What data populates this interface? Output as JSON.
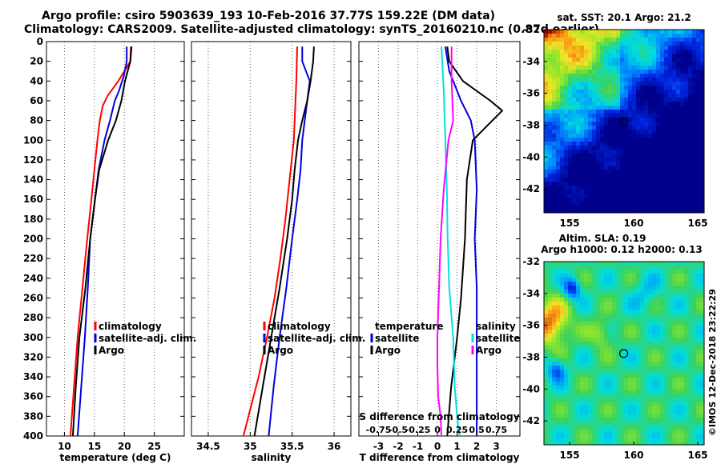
{
  "header": {
    "line1": "Argo profile: csiro 5903639_193 10-Feb-2016 37.77S 159.22E (DM data)",
    "line2": "Climatology: CARS2009. Satellite-adjusted climatology: synTS_20160210.nc (0.87d earlier)"
  },
  "watermark": "©IMOS 12-Dec-2018 23:22:29",
  "colors": {
    "climatology": "#ff0000",
    "satellite": "#0000dd",
    "argo": "#000000",
    "s_satellite": "#00e0e0",
    "s_argo": "#ff00ff",
    "grid": "#666666"
  },
  "chart_data": [
    {
      "id": "temperature",
      "type": "line",
      "xlabel": "temperature (deg C)",
      "ylabel": "",
      "xlim": [
        7,
        30
      ],
      "ylim": [
        400,
        0
      ],
      "xticks": [
        10,
        15,
        20,
        25
      ],
      "yticks": [
        0,
        20,
        40,
        60,
        80,
        100,
        120,
        140,
        160,
        180,
        200,
        220,
        240,
        260,
        280,
        300,
        320,
        340,
        360,
        380,
        400
      ],
      "legend": [
        "climatology",
        "satellite-adj. clim.",
        "Argo"
      ],
      "series": [
        {
          "name": "climatology",
          "depth": [
            5,
            20,
            40,
            55,
            65,
            80,
            100,
            130,
            160,
            200,
            250,
            300,
            350,
            400
          ],
          "values": [
            21.1,
            21.0,
            19.0,
            17.2,
            16.4,
            15.9,
            15.5,
            15.0,
            14.5,
            13.8,
            13.0,
            12.2,
            11.6,
            11.0
          ]
        },
        {
          "name": "satellite-adj. clim.",
          "depth": [
            5,
            20,
            35,
            50,
            60,
            80,
            100,
            130,
            160,
            200,
            250,
            300,
            350,
            400
          ],
          "values": [
            20.4,
            20.4,
            19.9,
            19.1,
            18.4,
            17.6,
            16.7,
            15.7,
            15.1,
            14.3,
            13.9,
            13.4,
            12.8,
            12.2
          ]
        },
        {
          "name": "Argo",
          "depth": [
            5,
            20,
            40,
            60,
            80,
            100,
            130,
            160,
            200,
            250,
            300,
            350,
            400
          ],
          "values": [
            21.2,
            21.0,
            20.1,
            19.5,
            18.6,
            17.3,
            15.8,
            15.1,
            14.3,
            13.5,
            12.5,
            11.9,
            11.4
          ]
        }
      ]
    },
    {
      "id": "salinity",
      "type": "line",
      "xlabel": "salinity",
      "ylabel": "",
      "xlim": [
        34.3,
        36.2
      ],
      "ylim": [
        400,
        0
      ],
      "xticks": [
        34.5,
        35,
        35.5,
        36
      ],
      "yticks": [
        0,
        20,
        40,
        60,
        80,
        100,
        120,
        140,
        160,
        180,
        200,
        220,
        240,
        260,
        280,
        300,
        320,
        340,
        360,
        380,
        400
      ],
      "legend": [
        "climatology",
        "satellite-adj. clim.",
        "Argo"
      ],
      "series": [
        {
          "name": "climatology",
          "depth": [
            5,
            40,
            80,
            100,
            140,
            180,
            220,
            260,
            300,
            340,
            380,
            400
          ],
          "values": [
            35.56,
            35.55,
            35.53,
            35.52,
            35.47,
            35.42,
            35.36,
            35.29,
            35.2,
            35.1,
            34.98,
            34.92
          ]
        },
        {
          "name": "satellite-adj. clim.",
          "depth": [
            5,
            20,
            40,
            60,
            80,
            100,
            130,
            160,
            200,
            250,
            300,
            350,
            400
          ],
          "values": [
            35.62,
            35.62,
            35.71,
            35.68,
            35.65,
            35.62,
            35.6,
            35.56,
            35.5,
            35.43,
            35.35,
            35.28,
            35.22
          ]
        },
        {
          "name": "Argo",
          "depth": [
            5,
            20,
            40,
            60,
            80,
            100,
            130,
            160,
            200,
            250,
            300,
            350,
            400
          ],
          "values": [
            35.76,
            35.75,
            35.72,
            35.68,
            35.62,
            35.57,
            35.53,
            35.5,
            35.44,
            35.35,
            35.25,
            35.15,
            35.05
          ]
        }
      ]
    },
    {
      "id": "difference",
      "type": "line",
      "xlabel": "T difference from climatology",
      "xlabel_top": "S difference from climatology",
      "ylabel": "",
      "xlim": [
        -4,
        4.2
      ],
      "ylim": [
        400,
        0
      ],
      "xticks": [
        -3,
        -2,
        -1,
        0,
        1,
        2,
        3
      ],
      "xtick_labels": [
        "-3",
        "-2",
        "-1",
        "0",
        "1",
        "2",
        "3"
      ],
      "s_xticks": [
        -0.75,
        -0.5,
        -0.25,
        0,
        0.25,
        0.5,
        0.75
      ],
      "s_xtick_labels": [
        "-0.75",
        "-0.5",
        "-0.25",
        "0",
        "0.25",
        "0.5",
        "0.75"
      ],
      "yticks": [
        0,
        20,
        40,
        60,
        80,
        100,
        120,
        140,
        160,
        180,
        200,
        220,
        240,
        260,
        280,
        300,
        320,
        340,
        360,
        380,
        400
      ],
      "legend": {
        "temperature_heading": "temperature",
        "salinity_heading": "salinity",
        "temperature": [
          "satellite",
          "Argo"
        ],
        "salinity": [
          "satellite",
          "Argo"
        ]
      },
      "series": [
        {
          "name": "temperature satellite",
          "depth": [
            5,
            30,
            50,
            60,
            80,
            100,
            150,
            200,
            250,
            300,
            350,
            400
          ],
          "values": [
            0.4,
            0.6,
            1.0,
            1.2,
            1.7,
            1.9,
            2.0,
            1.9,
            2.0,
            2.0,
            2.0,
            2.0
          ]
        },
        {
          "name": "temperature Argo",
          "depth": [
            5,
            20,
            40,
            60,
            70,
            80,
            100,
            140,
            200,
            260,
            300,
            350,
            400
          ],
          "values": [
            0.5,
            0.6,
            1.3,
            2.7,
            3.3,
            2.8,
            1.8,
            1.5,
            1.4,
            1.2,
            1.0,
            0.7,
            0.5
          ]
        },
        {
          "name": "salinity satellite",
          "depth": [
            5,
            50,
            100,
            150,
            200,
            250,
            300,
            350,
            380,
            400
          ],
          "values": [
            0.05,
            0.08,
            0.1,
            0.12,
            0.13,
            0.15,
            0.2,
            0.22,
            0.25,
            0.28
          ]
        },
        {
          "name": "salinity Argo",
          "depth": [
            5,
            40,
            80,
            100,
            150,
            200,
            250,
            300,
            330,
            360,
            380,
            400
          ],
          "values": [
            0.18,
            0.18,
            0.2,
            0.14,
            0.08,
            0.04,
            0.02,
            0.0,
            0.0,
            0.01,
            0.04,
            0.05
          ]
        }
      ]
    },
    {
      "id": "sst_map",
      "type": "heatmap",
      "title": "sat. SST: 20.1 Argo: 21.2",
      "xlim": [
        153,
        165.5
      ],
      "ylim": [
        -43.5,
        -32
      ],
      "xticks": [
        155,
        160,
        165
      ],
      "yticks": [
        -32,
        -34,
        -36,
        -38,
        -40,
        -42
      ],
      "marker": {
        "lon": 159.22,
        "lat": -37.77
      }
    },
    {
      "id": "sla_map",
      "type": "heatmap",
      "title_line1": "Altim. SLA: 0.19",
      "title_line2": "Argo h1000: 0.12 h2000: 0.13",
      "xlim": [
        153,
        165.5
      ],
      "ylim": [
        -43.5,
        -32
      ],
      "xticks": [
        155,
        160,
        165
      ],
      "yticks": [
        -32,
        -34,
        -36,
        -38,
        -40,
        -42
      ],
      "marker": {
        "lon": 159.22,
        "lat": -37.77
      }
    }
  ]
}
